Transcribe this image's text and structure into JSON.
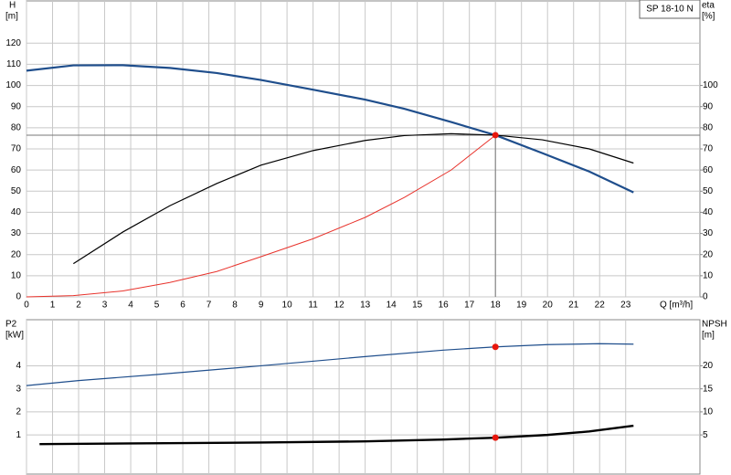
{
  "chart_data": [
    {
      "type": "line",
      "legend_box": "SP 18-10 N",
      "ylabel": "H",
      "yunit": "[m]",
      "y2label": "eta",
      "y2unit": "[%]",
      "xlabel": "Q [m³/h]",
      "xlim": [
        0,
        25.85
      ],
      "xticks": [
        0,
        1,
        2,
        3,
        4,
        5,
        6,
        7,
        8,
        9,
        10,
        11,
        12,
        13,
        14,
        15,
        16,
        17,
        18,
        19,
        20,
        21,
        22,
        23
      ],
      "ylim": [
        0,
        140
      ],
      "yticks": [
        0,
        10,
        20,
        30,
        40,
        50,
        60,
        70,
        80,
        90,
        100,
        110,
        120
      ],
      "y2lim": [
        0,
        140
      ],
      "y2ticks": [
        0,
        10,
        20,
        30,
        40,
        50,
        60,
        70,
        80,
        90,
        100
      ],
      "grid": true,
      "series": [
        {
          "color": "#1f4e8c",
          "width": 2.2,
          "x": [
            0,
            1.8,
            3.7,
            5.5,
            7.3,
            9,
            11,
            13,
            14.5,
            16.3,
            18,
            19.8,
            21.6,
            23.3
          ],
          "values": [
            107,
            109.5,
            109.6,
            108.3,
            105.9,
            102.6,
            98,
            93.3,
            89,
            82.7,
            76.5,
            68,
            59.3,
            49.4
          ]
        },
        {
          "color": "#000000",
          "width": 1.2,
          "axis": "y2",
          "x": [
            1.8,
            3.7,
            5.5,
            7.3,
            9,
            11,
            13,
            14.5,
            16.3,
            18,
            19.8,
            21.6,
            23.3
          ],
          "values": [
            15.7,
            30.7,
            43.1,
            53.6,
            62.3,
            69.2,
            74,
            76.3,
            77.2,
            76.5,
            74.3,
            70,
            63.3
          ]
        },
        {
          "color": "#e8322b",
          "width": 1,
          "x": [
            0,
            1.8,
            3.7,
            5.5,
            7.3,
            9,
            11,
            13,
            14.5,
            16.3,
            18
          ],
          "values": [
            0,
            0.6,
            2.8,
            6.8,
            12,
            19,
            27.5,
            37.6,
            47,
            60,
            76.5
          ]
        }
      ],
      "duty_points": [
        {
          "x": 18,
          "y": 76.5
        }
      ]
    },
    {
      "type": "line",
      "ylabel": "P2",
      "yunit": "[kW]",
      "y2label": "NPSH",
      "y2unit": "[m]",
      "xlim": [
        0,
        25.85
      ],
      "xticks": [
        0,
        1,
        2,
        3,
        4,
        5,
        6,
        7,
        8,
        9,
        10,
        11,
        12,
        13,
        14,
        15,
        16,
        17,
        18,
        19,
        20,
        21,
        22,
        23
      ],
      "ylim": [
        -0.7,
        6
      ],
      "yticks": [
        1,
        2,
        3,
        4
      ],
      "y2lim": [
        -3.5,
        30
      ],
      "y2ticks": [
        5,
        10,
        15,
        20
      ],
      "grid": true,
      "series": [
        {
          "color": "#1f4e8c",
          "width": 1.2,
          "axis": "y2",
          "x": [
            0,
            2,
            5,
            9,
            13,
            16,
            18,
            20,
            22,
            23.3
          ],
          "values": [
            15.7,
            16.8,
            18.1,
            20,
            22,
            23.4,
            24.1,
            24.6,
            24.8,
            24.7
          ]
        },
        {
          "color": "#000000",
          "width": 2.4,
          "x": [
            0.5,
            4,
            9,
            13,
            16,
            18,
            20,
            21.6,
            23.3
          ],
          "values": [
            0.6,
            0.63,
            0.67,
            0.72,
            0.8,
            0.88,
            1,
            1.15,
            1.4
          ]
        }
      ],
      "duty_points": [
        {
          "x": 18,
          "y": 24.1,
          "axis": "y2"
        },
        {
          "x": 18,
          "y": 0.88
        }
      ]
    }
  ]
}
